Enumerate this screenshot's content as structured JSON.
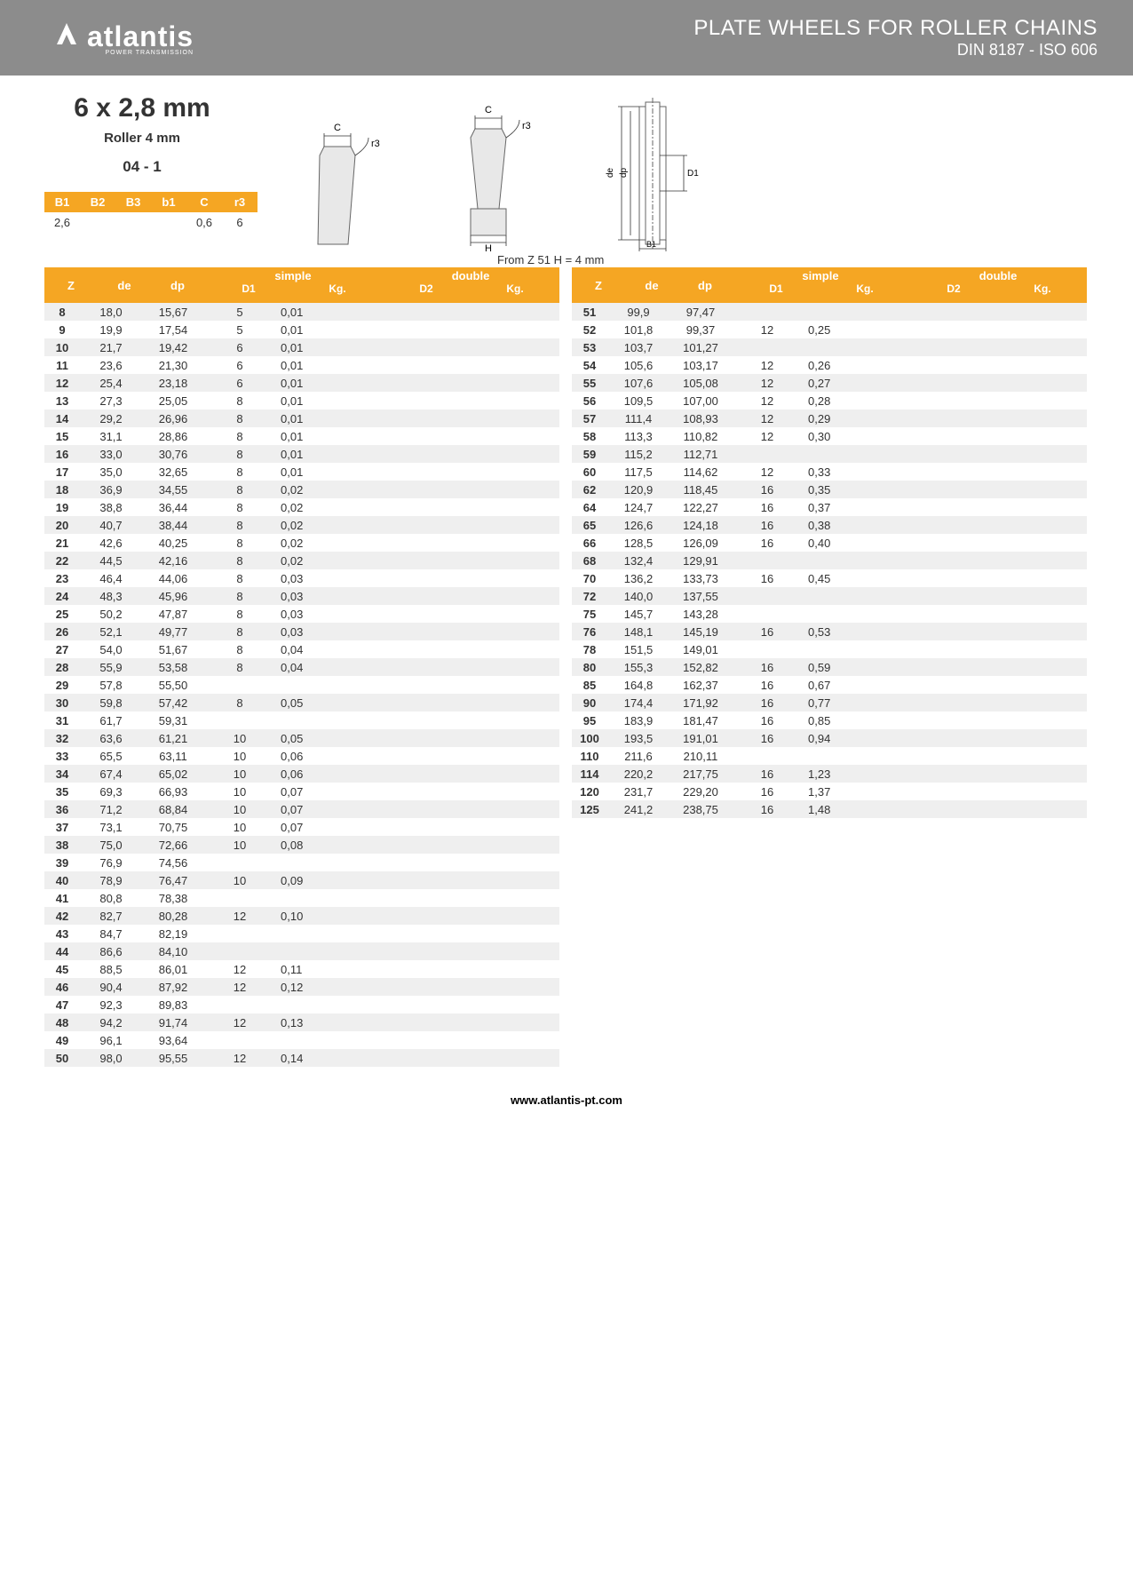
{
  "header": {
    "logo_text": "atlantis",
    "logo_sub": "POWER TRANSMISSION",
    "title1": "PLATE WHEELS FOR ROLLER CHAINS",
    "title2": "DIN 8187 - ISO 606"
  },
  "spec": {
    "size": "6 x 2,8 mm",
    "roller": "Roller 4 mm",
    "code": "04 - 1"
  },
  "small_table": {
    "headers": [
      "B1",
      "B2",
      "B3",
      "b1",
      "C",
      "r3"
    ],
    "values": [
      "2,6",
      "",
      "",
      "",
      "0,6",
      "6"
    ]
  },
  "note": "From Z 51 H = 4 mm",
  "diagram_labels": {
    "c": "C",
    "r3": "r3",
    "h": "H",
    "de": "de",
    "dp": "dp",
    "d1": "D1",
    "b1": "B1"
  },
  "table_headers": {
    "z": "Z",
    "de": "de",
    "dp": "dp",
    "simple": "simple",
    "d1": "D1",
    "kg1": "Kg.",
    "double": "double",
    "d2": "D2",
    "kg2": "Kg."
  },
  "table1": [
    {
      "z": "8",
      "de": "18,0",
      "dp": "15,67",
      "d1": "5",
      "kg1": "0,01"
    },
    {
      "z": "9",
      "de": "19,9",
      "dp": "17,54",
      "d1": "5",
      "kg1": "0,01"
    },
    {
      "z": "10",
      "de": "21,7",
      "dp": "19,42",
      "d1": "6",
      "kg1": "0,01"
    },
    {
      "z": "11",
      "de": "23,6",
      "dp": "21,30",
      "d1": "6",
      "kg1": "0,01"
    },
    {
      "z": "12",
      "de": "25,4",
      "dp": "23,18",
      "d1": "6",
      "kg1": "0,01"
    },
    {
      "z": "13",
      "de": "27,3",
      "dp": "25,05",
      "d1": "8",
      "kg1": "0,01"
    },
    {
      "z": "14",
      "de": "29,2",
      "dp": "26,96",
      "d1": "8",
      "kg1": "0,01"
    },
    {
      "z": "15",
      "de": "31,1",
      "dp": "28,86",
      "d1": "8",
      "kg1": "0,01"
    },
    {
      "z": "16",
      "de": "33,0",
      "dp": "30,76",
      "d1": "8",
      "kg1": "0,01"
    },
    {
      "z": "17",
      "de": "35,0",
      "dp": "32,65",
      "d1": "8",
      "kg1": "0,01"
    },
    {
      "z": "18",
      "de": "36,9",
      "dp": "34,55",
      "d1": "8",
      "kg1": "0,02"
    },
    {
      "z": "19",
      "de": "38,8",
      "dp": "36,44",
      "d1": "8",
      "kg1": "0,02"
    },
    {
      "z": "20",
      "de": "40,7",
      "dp": "38,44",
      "d1": "8",
      "kg1": "0,02"
    },
    {
      "z": "21",
      "de": "42,6",
      "dp": "40,25",
      "d1": "8",
      "kg1": "0,02"
    },
    {
      "z": "22",
      "de": "44,5",
      "dp": "42,16",
      "d1": "8",
      "kg1": "0,02"
    },
    {
      "z": "23",
      "de": "46,4",
      "dp": "44,06",
      "d1": "8",
      "kg1": "0,03"
    },
    {
      "z": "24",
      "de": "48,3",
      "dp": "45,96",
      "d1": "8",
      "kg1": "0,03"
    },
    {
      "z": "25",
      "de": "50,2",
      "dp": "47,87",
      "d1": "8",
      "kg1": "0,03"
    },
    {
      "z": "26",
      "de": "52,1",
      "dp": "49,77",
      "d1": "8",
      "kg1": "0,03"
    },
    {
      "z": "27",
      "de": "54,0",
      "dp": "51,67",
      "d1": "8",
      "kg1": "0,04"
    },
    {
      "z": "28",
      "de": "55,9",
      "dp": "53,58",
      "d1": "8",
      "kg1": "0,04"
    },
    {
      "z": "29",
      "de": "57,8",
      "dp": "55,50",
      "d1": "",
      "kg1": ""
    },
    {
      "z": "30",
      "de": "59,8",
      "dp": "57,42",
      "d1": "8",
      "kg1": "0,05"
    },
    {
      "z": "31",
      "de": "61,7",
      "dp": "59,31",
      "d1": "",
      "kg1": ""
    },
    {
      "z": "32",
      "de": "63,6",
      "dp": "61,21",
      "d1": "10",
      "kg1": "0,05"
    },
    {
      "z": "33",
      "de": "65,5",
      "dp": "63,11",
      "d1": "10",
      "kg1": "0,06"
    },
    {
      "z": "34",
      "de": "67,4",
      "dp": "65,02",
      "d1": "10",
      "kg1": "0,06"
    },
    {
      "z": "35",
      "de": "69,3",
      "dp": "66,93",
      "d1": "10",
      "kg1": "0,07"
    },
    {
      "z": "36",
      "de": "71,2",
      "dp": "68,84",
      "d1": "10",
      "kg1": "0,07"
    },
    {
      "z": "37",
      "de": "73,1",
      "dp": "70,75",
      "d1": "10",
      "kg1": "0,07"
    },
    {
      "z": "38",
      "de": "75,0",
      "dp": "72,66",
      "d1": "10",
      "kg1": "0,08"
    },
    {
      "z": "39",
      "de": "76,9",
      "dp": "74,56",
      "d1": "",
      "kg1": ""
    },
    {
      "z": "40",
      "de": "78,9",
      "dp": "76,47",
      "d1": "10",
      "kg1": "0,09"
    },
    {
      "z": "41",
      "de": "80,8",
      "dp": "78,38",
      "d1": "",
      "kg1": ""
    },
    {
      "z": "42",
      "de": "82,7",
      "dp": "80,28",
      "d1": "12",
      "kg1": "0,10"
    },
    {
      "z": "43",
      "de": "84,7",
      "dp": "82,19",
      "d1": "",
      "kg1": ""
    },
    {
      "z": "44",
      "de": "86,6",
      "dp": "84,10",
      "d1": "",
      "kg1": ""
    },
    {
      "z": "45",
      "de": "88,5",
      "dp": "86,01",
      "d1": "12",
      "kg1": "0,11"
    },
    {
      "z": "46",
      "de": "90,4",
      "dp": "87,92",
      "d1": "12",
      "kg1": "0,12"
    },
    {
      "z": "47",
      "de": "92,3",
      "dp": "89,83",
      "d1": "",
      "kg1": ""
    },
    {
      "z": "48",
      "de": "94,2",
      "dp": "91,74",
      "d1": "12",
      "kg1": "0,13"
    },
    {
      "z": "49",
      "de": "96,1",
      "dp": "93,64",
      "d1": "",
      "kg1": ""
    },
    {
      "z": "50",
      "de": "98,0",
      "dp": "95,55",
      "d1": "12",
      "kg1": "0,14"
    }
  ],
  "table2": [
    {
      "z": "51",
      "de": "99,9",
      "dp": "97,47",
      "d1": "",
      "kg1": ""
    },
    {
      "z": "52",
      "de": "101,8",
      "dp": "99,37",
      "d1": "12",
      "kg1": "0,25"
    },
    {
      "z": "53",
      "de": "103,7",
      "dp": "101,27",
      "d1": "",
      "kg1": ""
    },
    {
      "z": "54",
      "de": "105,6",
      "dp": "103,17",
      "d1": "12",
      "kg1": "0,26"
    },
    {
      "z": "55",
      "de": "107,6",
      "dp": "105,08",
      "d1": "12",
      "kg1": "0,27"
    },
    {
      "z": "56",
      "de": "109,5",
      "dp": "107,00",
      "d1": "12",
      "kg1": "0,28"
    },
    {
      "z": "57",
      "de": "111,4",
      "dp": "108,93",
      "d1": "12",
      "kg1": "0,29"
    },
    {
      "z": "58",
      "de": "113,3",
      "dp": "110,82",
      "d1": "12",
      "kg1": "0,30"
    },
    {
      "z": "59",
      "de": "115,2",
      "dp": "112,71",
      "d1": "",
      "kg1": ""
    },
    {
      "z": "60",
      "de": "117,5",
      "dp": "114,62",
      "d1": "12",
      "kg1": "0,33"
    },
    {
      "z": "62",
      "de": "120,9",
      "dp": "118,45",
      "d1": "16",
      "kg1": "0,35"
    },
    {
      "z": "64",
      "de": "124,7",
      "dp": "122,27",
      "d1": "16",
      "kg1": "0,37"
    },
    {
      "z": "65",
      "de": "126,6",
      "dp": "124,18",
      "d1": "16",
      "kg1": "0,38"
    },
    {
      "z": "66",
      "de": "128,5",
      "dp": "126,09",
      "d1": "16",
      "kg1": "0,40"
    },
    {
      "z": "68",
      "de": "132,4",
      "dp": "129,91",
      "d1": "",
      "kg1": ""
    },
    {
      "z": "70",
      "de": "136,2",
      "dp": "133,73",
      "d1": "16",
      "kg1": "0,45"
    },
    {
      "z": "72",
      "de": "140,0",
      "dp": "137,55",
      "d1": "",
      "kg1": ""
    },
    {
      "z": "75",
      "de": "145,7",
      "dp": "143,28",
      "d1": "",
      "kg1": ""
    },
    {
      "z": "76",
      "de": "148,1",
      "dp": "145,19",
      "d1": "16",
      "kg1": "0,53"
    },
    {
      "z": "78",
      "de": "151,5",
      "dp": "149,01",
      "d1": "",
      "kg1": ""
    },
    {
      "z": "80",
      "de": "155,3",
      "dp": "152,82",
      "d1": "16",
      "kg1": "0,59"
    },
    {
      "z": "85",
      "de": "164,8",
      "dp": "162,37",
      "d1": "16",
      "kg1": "0,67"
    },
    {
      "z": "90",
      "de": "174,4",
      "dp": "171,92",
      "d1": "16",
      "kg1": "0,77"
    },
    {
      "z": "95",
      "de": "183,9",
      "dp": "181,47",
      "d1": "16",
      "kg1": "0,85"
    },
    {
      "z": "100",
      "de": "193,5",
      "dp": "191,01",
      "d1": "16",
      "kg1": "0,94"
    },
    {
      "z": "110",
      "de": "211,6",
      "dp": "210,11",
      "d1": "",
      "kg1": ""
    },
    {
      "z": "114",
      "de": "220,2",
      "dp": "217,75",
      "d1": "16",
      "kg1": "1,23"
    },
    {
      "z": "120",
      "de": "231,7",
      "dp": "229,20",
      "d1": "16",
      "kg1": "1,37"
    },
    {
      "z": "125",
      "de": "241,2",
      "dp": "238,75",
      "d1": "16",
      "kg1": "1,48"
    }
  ],
  "footer": "www.atlantis-pt.com",
  "colors": {
    "header_bg": "#8c8c8c",
    "accent": "#f5a623",
    "row_alt": "#efefef"
  }
}
